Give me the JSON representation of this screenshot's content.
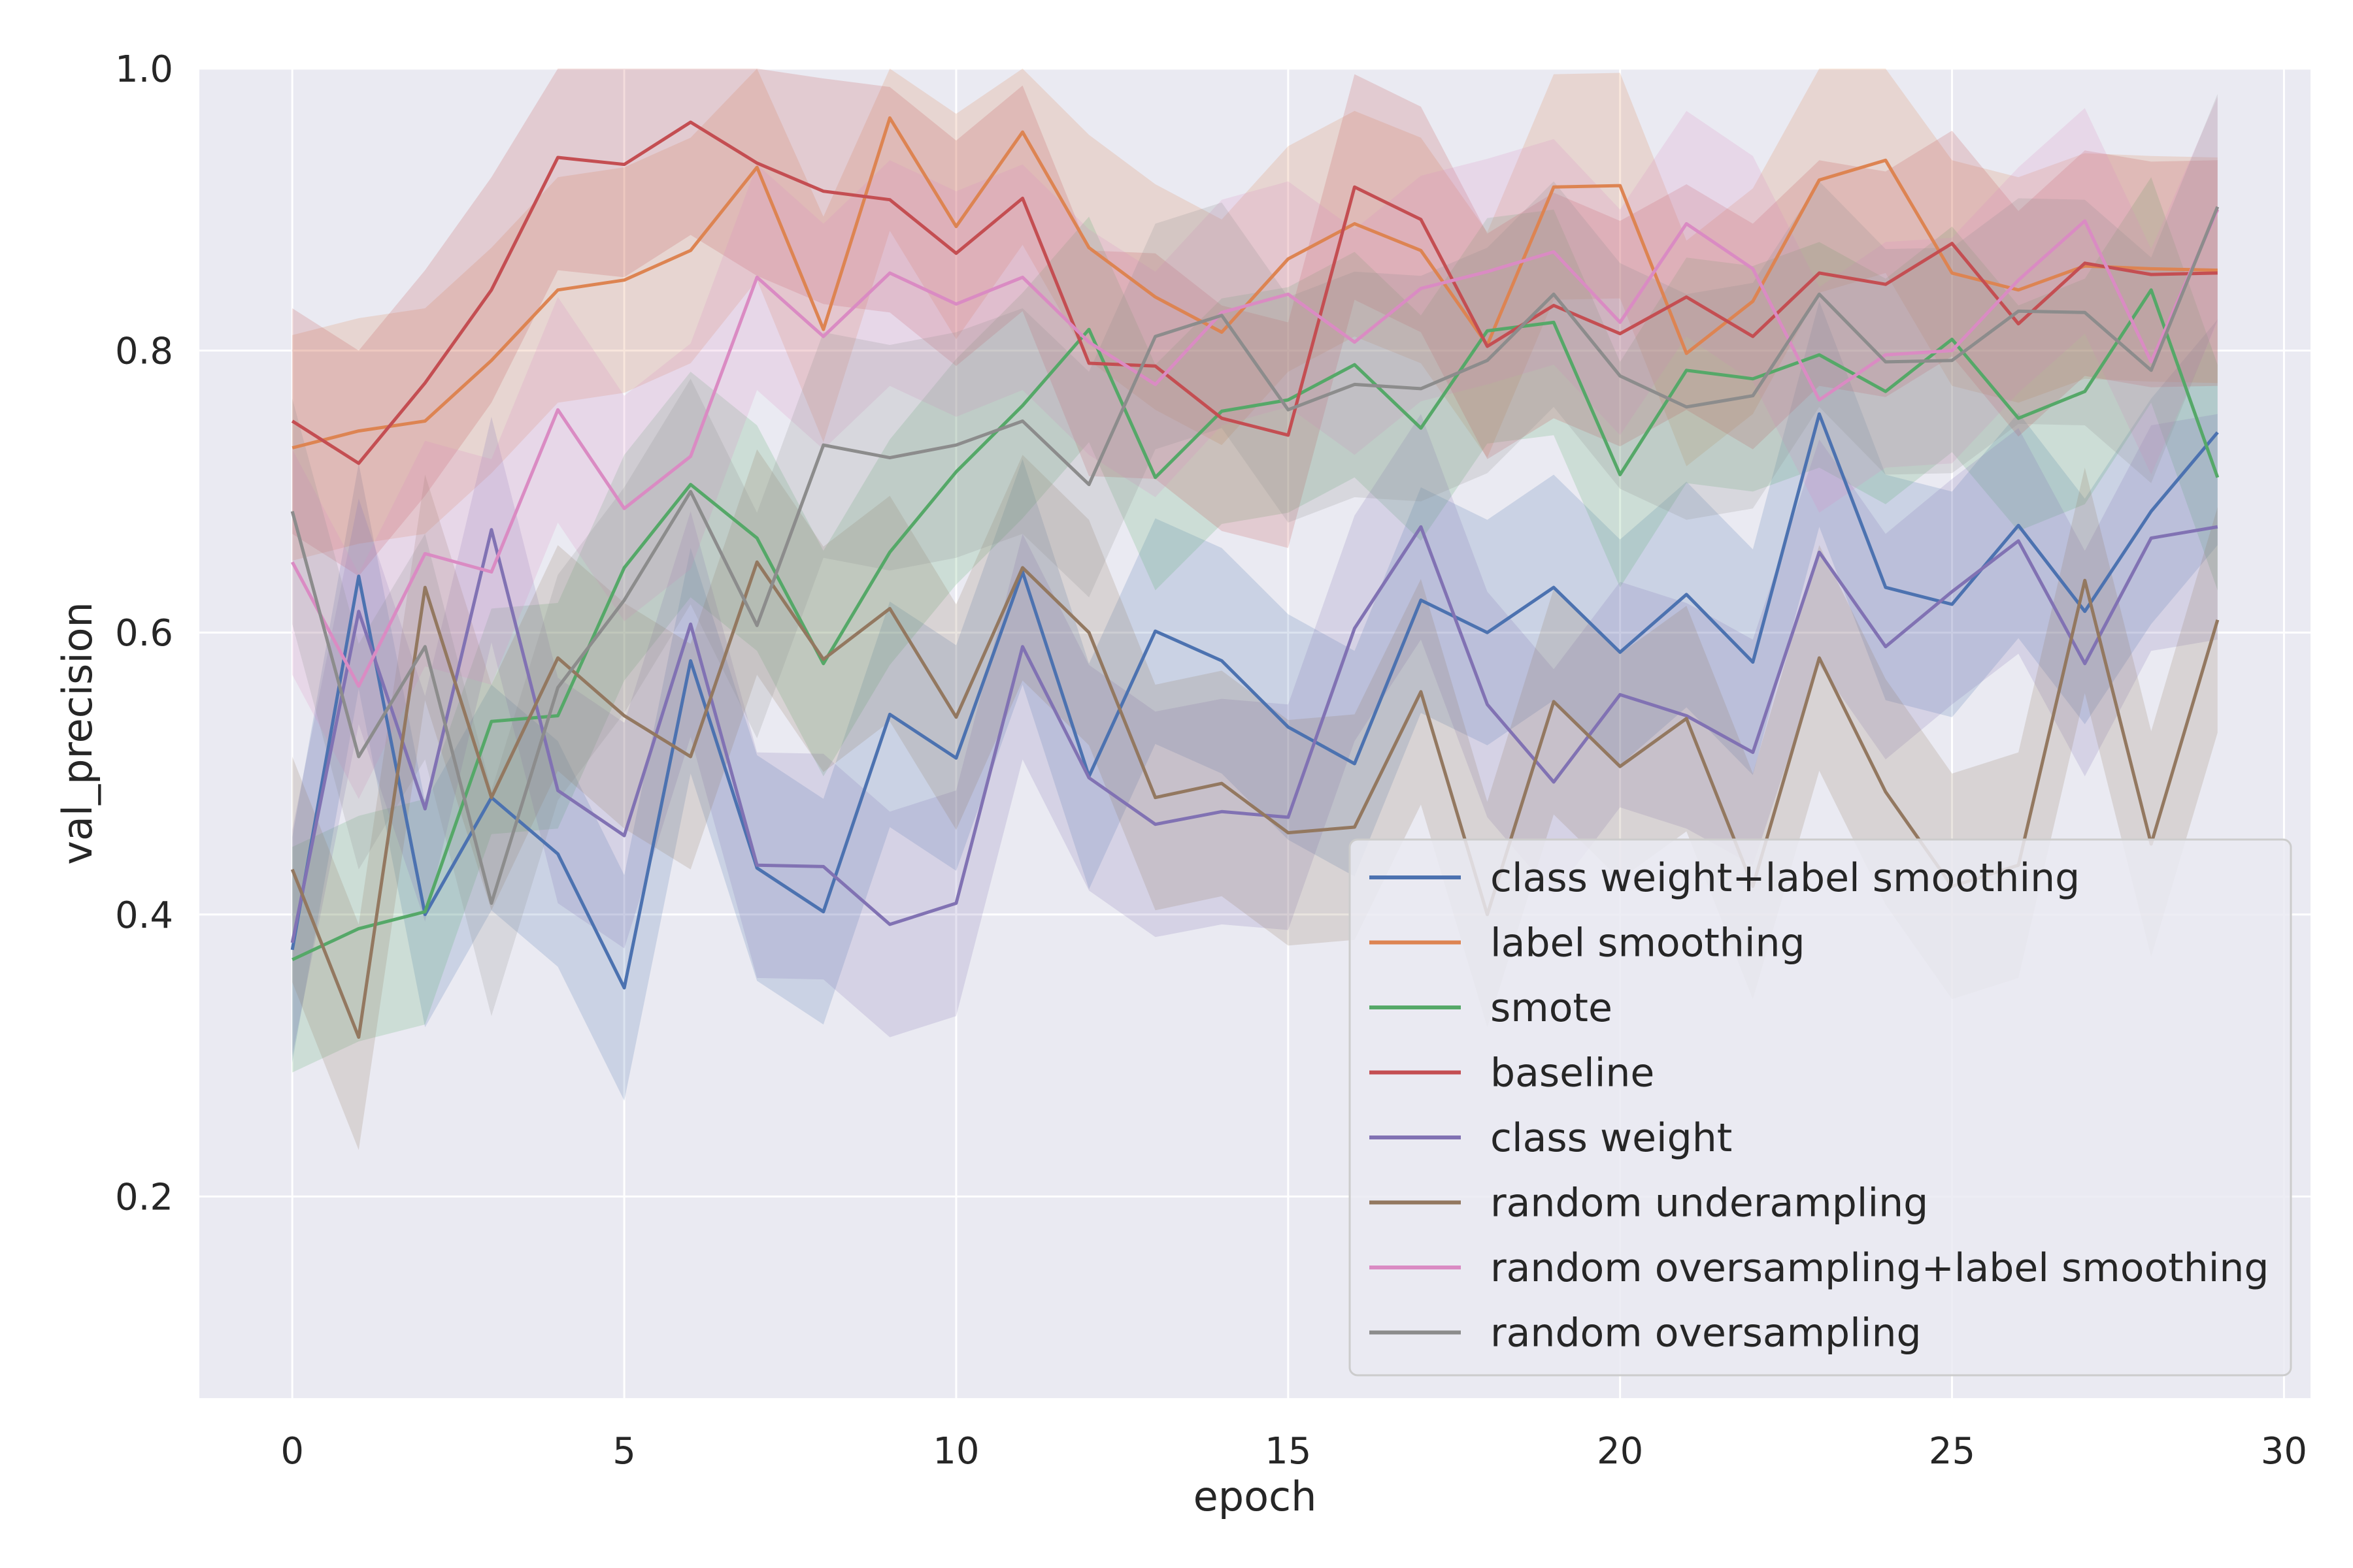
{
  "chart_data": {
    "type": "line",
    "title": "",
    "xlabel": "epoch",
    "ylabel": "val_precision",
    "xlim": [
      -1.4,
      30.4
    ],
    "ylim": [
      0.057,
      1.0
    ],
    "xticks": [
      0,
      5,
      10,
      15,
      20,
      25,
      30
    ],
    "yticks": [
      0.2,
      0.4,
      0.6,
      0.8,
      1.0
    ],
    "xtick_labels": [
      "0",
      "5",
      "10",
      "15",
      "20",
      "25",
      "30"
    ],
    "ytick_labels": [
      "0.2",
      "0.4",
      "0.6",
      "0.8",
      "1.0"
    ],
    "grid": true,
    "legend_position": "lower-right",
    "band_halfwidth": 0.08,
    "x": [
      0,
      1,
      2,
      3,
      4,
      5,
      6,
      7,
      8,
      9,
      10,
      11,
      12,
      13,
      14,
      15,
      16,
      17,
      18,
      19,
      20,
      21,
      22,
      23,
      24,
      25,
      26,
      27,
      28,
      29
    ],
    "series": [
      {
        "name": "class weight+label smoothing",
        "color": "#4c72b0",
        "values": [
          0.375,
          0.64,
          0.4,
          0.483,
          0.443,
          0.348,
          0.58,
          0.433,
          0.402,
          0.542,
          0.511,
          0.643,
          0.498,
          0.601,
          0.58,
          0.533,
          0.507,
          0.623,
          0.6,
          0.632,
          0.586,
          0.627,
          0.579,
          0.755,
          0.632,
          0.62,
          0.676,
          0.615,
          0.686,
          0.742
        ]
      },
      {
        "name": "label smoothing",
        "color": "#dd8452",
        "values": [
          0.731,
          0.743,
          0.75,
          0.793,
          0.843,
          0.85,
          0.871,
          0.93,
          0.815,
          0.965,
          0.888,
          0.955,
          0.873,
          0.838,
          0.813,
          0.865,
          0.89,
          0.871,
          0.804,
          0.916,
          0.917,
          0.798,
          0.835,
          0.921,
          0.935,
          0.855,
          0.843,
          0.86,
          0.858,
          0.857
        ]
      },
      {
        "name": "smote",
        "color": "#55a868",
        "values": [
          0.368,
          0.39,
          0.402,
          0.537,
          0.541,
          0.646,
          0.705,
          0.667,
          0.578,
          0.657,
          0.714,
          0.761,
          0.815,
          0.71,
          0.757,
          0.765,
          0.79,
          0.745,
          0.814,
          0.82,
          0.712,
          0.786,
          0.78,
          0.797,
          0.771,
          0.808,
          0.752,
          0.771,
          0.843,
          0.71
        ]
      },
      {
        "name": "baseline",
        "color": "#c44e52",
        "values": [
          0.75,
          0.72,
          0.777,
          0.843,
          0.937,
          0.932,
          0.962,
          0.933,
          0.913,
          0.907,
          0.869,
          0.908,
          0.791,
          0.789,
          0.752,
          0.74,
          0.916,
          0.893,
          0.803,
          0.832,
          0.812,
          0.838,
          0.81,
          0.855,
          0.847,
          0.876,
          0.819,
          0.862,
          0.854,
          0.855
        ]
      },
      {
        "name": "class weight",
        "color": "#8172b3",
        "values": [
          0.38,
          0.615,
          0.475,
          0.673,
          0.488,
          0.456,
          0.606,
          0.435,
          0.434,
          0.393,
          0.408,
          0.59,
          0.497,
          0.464,
          0.473,
          0.469,
          0.603,
          0.675,
          0.549,
          0.494,
          0.556,
          0.541,
          0.515,
          0.657,
          0.59,
          0.629,
          0.665,
          0.578,
          0.667,
          0.675
        ]
      },
      {
        "name": "random underampling",
        "color": "#937860",
        "values": [
          0.432,
          0.313,
          0.632,
          0.483,
          0.582,
          0.541,
          0.512,
          0.65,
          0.581,
          0.617,
          0.54,
          0.646,
          0.6,
          0.483,
          0.493,
          0.458,
          0.462,
          0.558,
          0.4,
          0.551,
          0.505,
          0.539,
          0.42,
          0.582,
          0.487,
          0.42,
          0.435,
          0.637,
          0.45,
          0.609
        ]
      },
      {
        "name": "random oversampling+label smoothing",
        "color": "#da8bc3",
        "values": [
          0.65,
          0.562,
          0.656,
          0.643,
          0.758,
          0.688,
          0.725,
          0.852,
          0.81,
          0.855,
          0.833,
          0.852,
          0.806,
          0.776,
          0.827,
          0.84,
          0.806,
          0.844,
          0.856,
          0.87,
          0.82,
          0.89,
          0.858,
          0.765,
          0.797,
          0.8,
          0.85,
          0.892,
          0.792,
          0.9
        ]
      },
      {
        "name": "random oversampling",
        "color": "#8c8c8c",
        "values": [
          0.686,
          0.512,
          0.59,
          0.408,
          0.561,
          0.623,
          0.7,
          0.605,
          0.733,
          0.724,
          0.733,
          0.75,
          0.705,
          0.81,
          0.825,
          0.758,
          0.776,
          0.773,
          0.793,
          0.84,
          0.782,
          0.76,
          0.768,
          0.84,
          0.792,
          0.793,
          0.828,
          0.827,
          0.786,
          0.902
        ]
      }
    ]
  }
}
